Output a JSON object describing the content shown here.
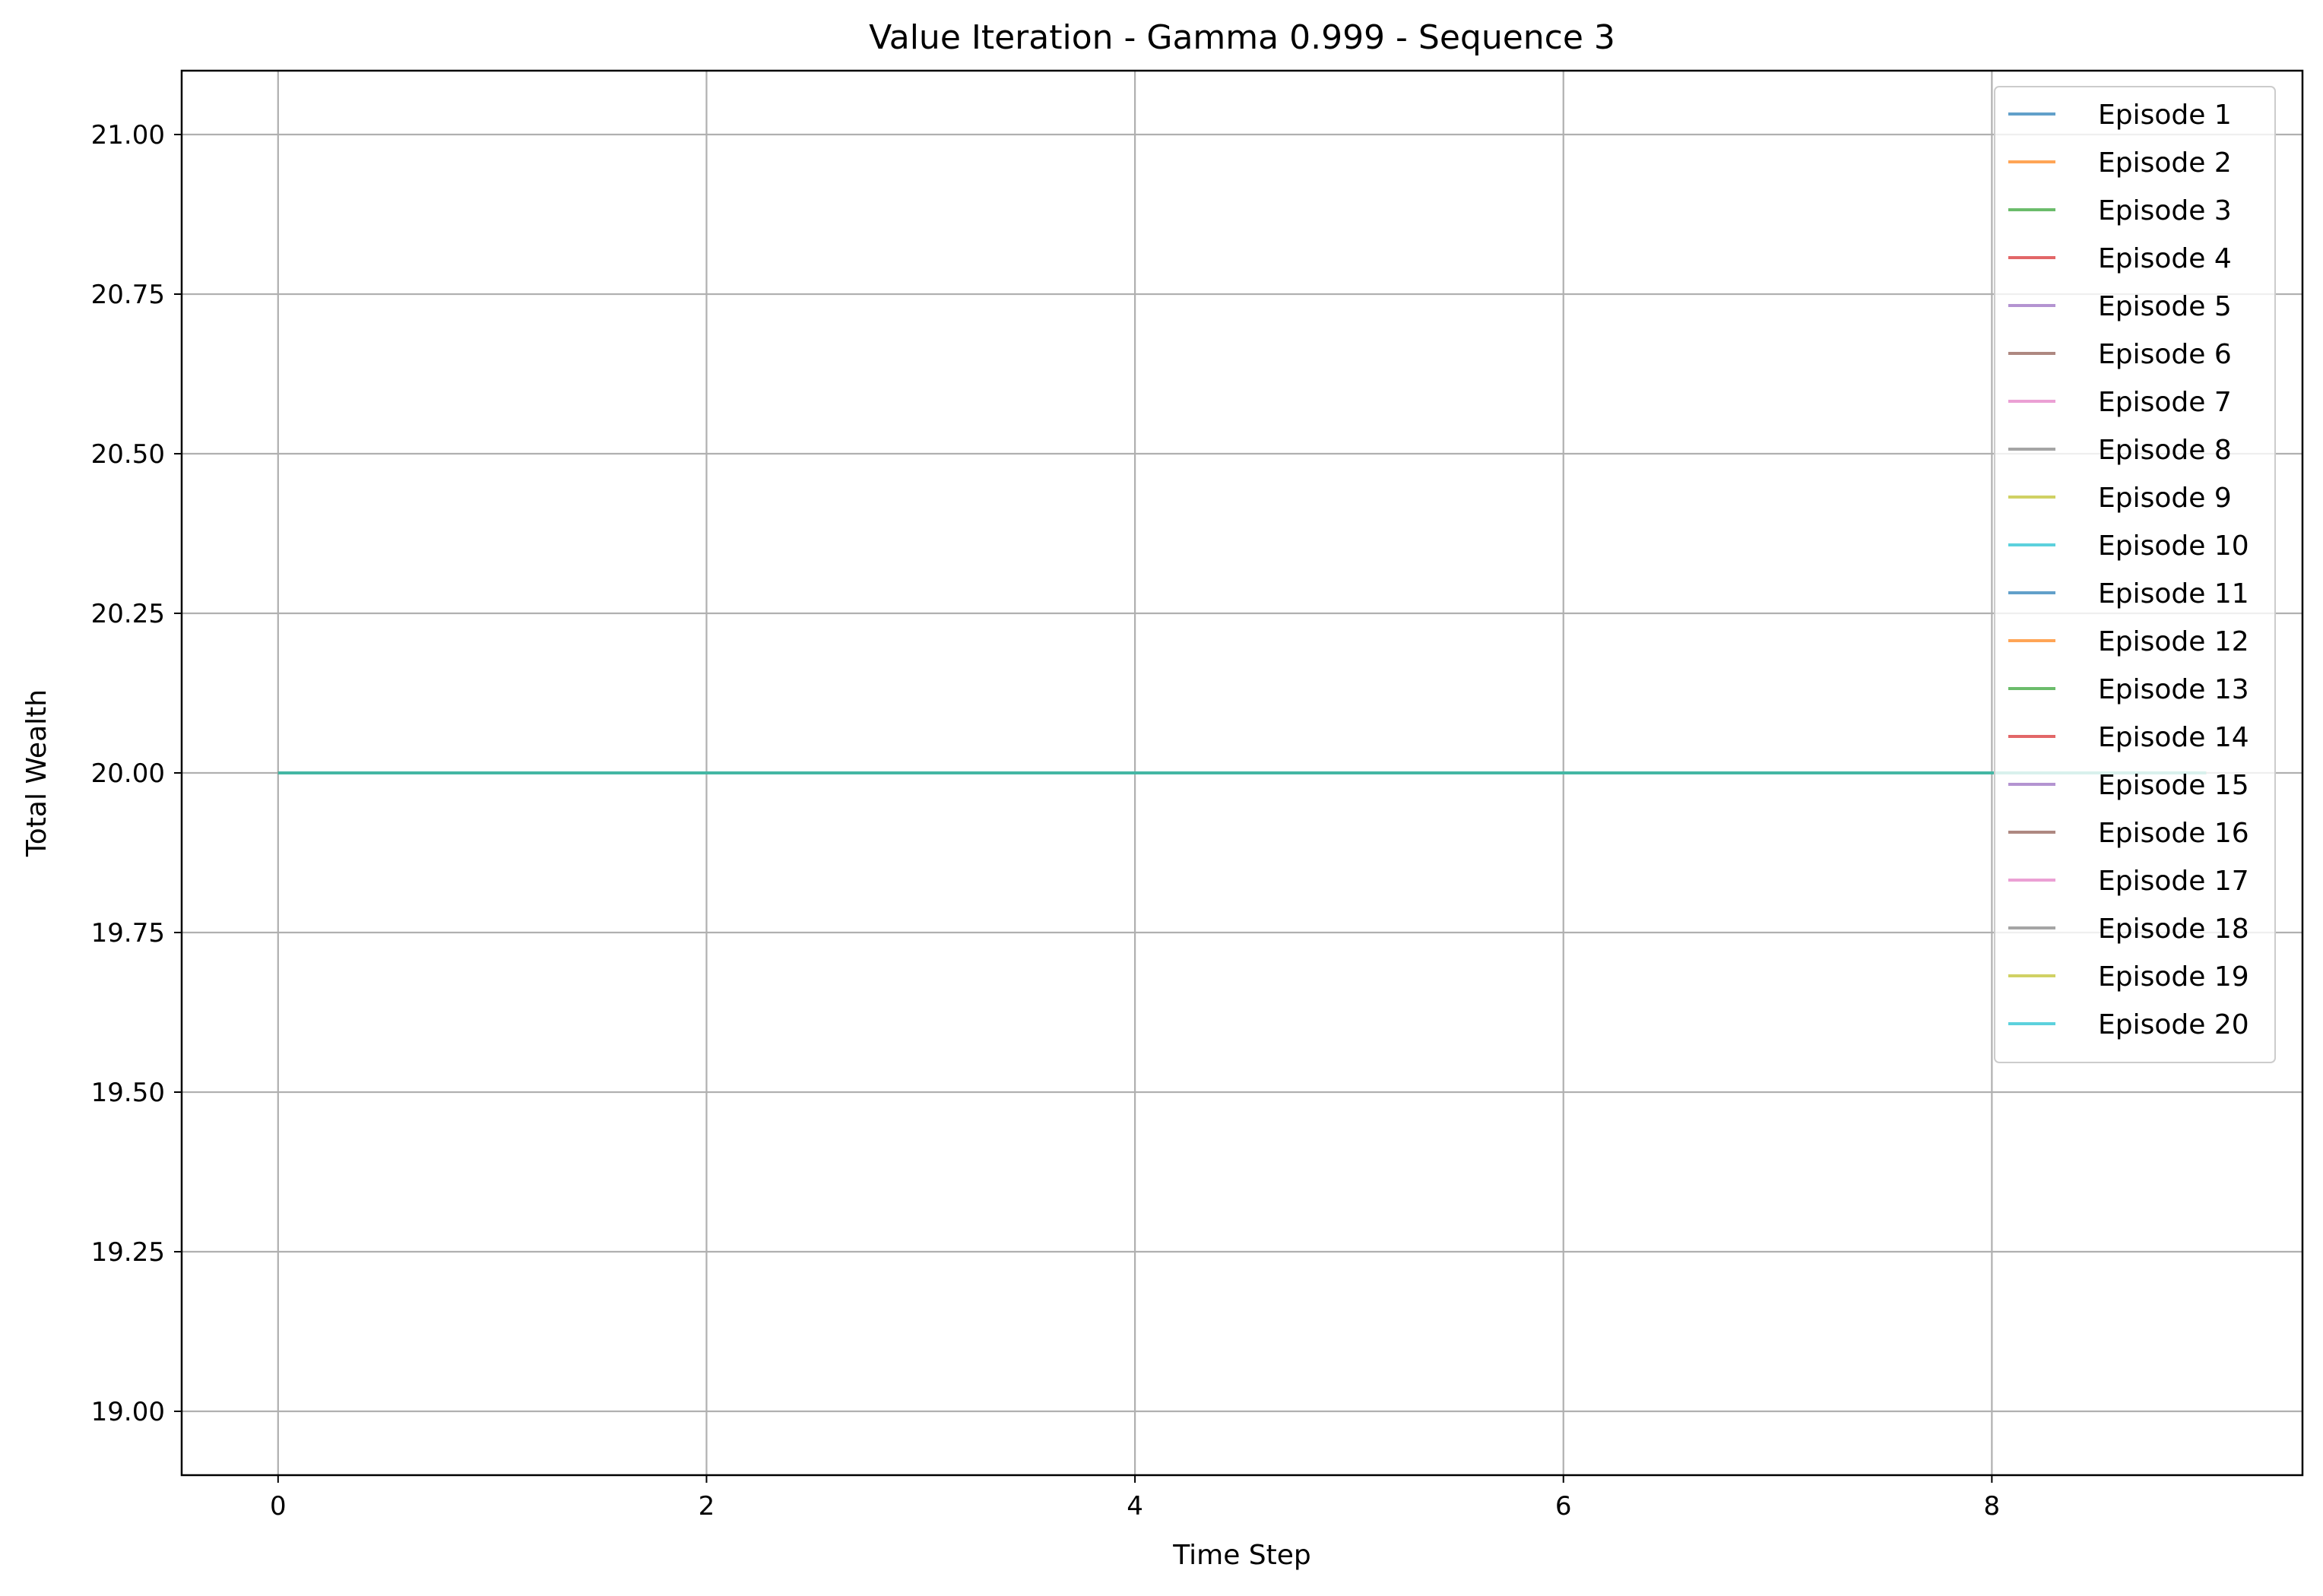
{
  "chart_data": {
    "type": "line",
    "title": "Value Iteration - Gamma 0.999 - Sequence 3",
    "xlabel": "Time Step",
    "ylabel": "Total Wealth",
    "xlim": [
      -0.45,
      9.45
    ],
    "ylim": [
      18.9,
      21.1
    ],
    "xticks": [
      0,
      2,
      4,
      6,
      8
    ],
    "xtick_labels": [
      "0",
      "2",
      "4",
      "6",
      "8"
    ],
    "yticks": [
      19.0,
      19.25,
      19.5,
      19.75,
      20.0,
      20.25,
      20.5,
      20.75,
      21.0
    ],
    "ytick_labels": [
      "19.00",
      "19.25",
      "19.50",
      "19.75",
      "20.00",
      "20.25",
      "20.50",
      "20.75",
      "21.00"
    ],
    "grid": true,
    "legend_position": "top-right",
    "x": [
      0,
      1,
      2,
      3,
      4,
      5,
      6,
      7,
      8,
      9
    ],
    "series": [
      {
        "name": "Episode 1",
        "color": "#1f77b4",
        "values": [
          20,
          20,
          20,
          20,
          20,
          20,
          20,
          20,
          20,
          20
        ]
      },
      {
        "name": "Episode 2",
        "color": "#ff7f0e",
        "values": [
          20,
          20,
          20,
          20,
          20,
          20,
          20,
          20,
          20,
          20
        ]
      },
      {
        "name": "Episode 3",
        "color": "#2ca02c",
        "values": [
          20,
          20,
          20,
          20,
          20,
          20,
          20,
          20,
          20,
          20
        ]
      },
      {
        "name": "Episode 4",
        "color": "#d62728",
        "values": [
          20,
          20,
          20,
          20,
          20,
          20,
          20,
          20,
          20,
          20
        ]
      },
      {
        "name": "Episode 5",
        "color": "#9467bd",
        "values": [
          20,
          20,
          20,
          20,
          20,
          20,
          20,
          20,
          20,
          20
        ]
      },
      {
        "name": "Episode 6",
        "color": "#8c564b",
        "values": [
          20,
          20,
          20,
          20,
          20,
          20,
          20,
          20,
          20,
          20
        ]
      },
      {
        "name": "Episode 7",
        "color": "#e377c2",
        "values": [
          20,
          20,
          20,
          20,
          20,
          20,
          20,
          20,
          20,
          20
        ]
      },
      {
        "name": "Episode 8",
        "color": "#7f7f7f",
        "values": [
          20,
          20,
          20,
          20,
          20,
          20,
          20,
          20,
          20,
          20
        ]
      },
      {
        "name": "Episode 9",
        "color": "#bcbd22",
        "values": [
          20,
          20,
          20,
          20,
          20,
          20,
          20,
          20,
          20,
          20
        ]
      },
      {
        "name": "Episode 10",
        "color": "#17becf",
        "values": [
          20,
          20,
          20,
          20,
          20,
          20,
          20,
          20,
          20,
          20
        ]
      },
      {
        "name": "Episode 11",
        "color": "#1f77b4",
        "values": [
          20,
          20,
          20,
          20,
          20,
          20,
          20,
          20,
          20,
          20
        ]
      },
      {
        "name": "Episode 12",
        "color": "#ff7f0e",
        "values": [
          20,
          20,
          20,
          20,
          20,
          20,
          20,
          20,
          20,
          20
        ]
      },
      {
        "name": "Episode 13",
        "color": "#2ca02c",
        "values": [
          20,
          20,
          20,
          20,
          20,
          20,
          20,
          20,
          20,
          20
        ]
      },
      {
        "name": "Episode 14",
        "color": "#d62728",
        "values": [
          20,
          20,
          20,
          20,
          20,
          20,
          20,
          20,
          20,
          20
        ]
      },
      {
        "name": "Episode 15",
        "color": "#9467bd",
        "values": [
          20,
          20,
          20,
          20,
          20,
          20,
          20,
          20,
          20,
          20
        ]
      },
      {
        "name": "Episode 16",
        "color": "#8c564b",
        "values": [
          20,
          20,
          20,
          20,
          20,
          20,
          20,
          20,
          20,
          20
        ]
      },
      {
        "name": "Episode 17",
        "color": "#e377c2",
        "values": [
          20,
          20,
          20,
          20,
          20,
          20,
          20,
          20,
          20,
          20
        ]
      },
      {
        "name": "Episode 18",
        "color": "#7f7f7f",
        "values": [
          20,
          20,
          20,
          20,
          20,
          20,
          20,
          20,
          20,
          20
        ]
      },
      {
        "name": "Episode 19",
        "color": "#bcbd22",
        "values": [
          20,
          20,
          20,
          20,
          20,
          20,
          20,
          20,
          20,
          20
        ]
      },
      {
        "name": "Episode 20",
        "color": "#17becf",
        "values": [
          20,
          20,
          20,
          20,
          20,
          20,
          20,
          20,
          20,
          20
        ]
      }
    ]
  }
}
